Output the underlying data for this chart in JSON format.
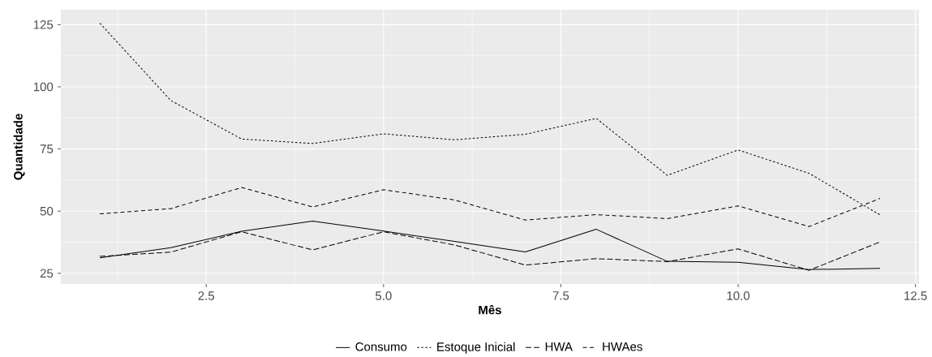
{
  "chart_data": {
    "type": "line",
    "xlabel": "Mês",
    "ylabel": "Quantidade",
    "x": [
      1,
      2,
      3,
      4,
      5,
      6,
      7,
      8,
      9,
      10,
      11,
      12
    ],
    "series": [
      {
        "name": "Consumo",
        "color": "#000000",
        "line_style": "solid",
        "values": [
          31.2,
          35.3,
          41.9,
          46.0,
          42.0,
          37.8,
          33.6,
          42.7,
          29.8,
          29.4,
          26.5,
          27.0
        ]
      },
      {
        "name": "Estoque Inicial",
        "color": "#000000",
        "line_style": "dotted",
        "values": [
          125.6,
          94.5,
          79.0,
          77.2,
          81.1,
          78.7,
          80.9,
          87.3,
          64.4,
          74.6,
          65.2,
          48.5
        ]
      },
      {
        "name": "HWA",
        "color": "#000000",
        "line_style": "dashed",
        "values": [
          31.8,
          33.5,
          41.7,
          34.4,
          41.7,
          36.4,
          28.3,
          30.9,
          29.7,
          34.8,
          26.2,
          37.6
        ]
      },
      {
        "name": "HWAes",
        "color": "#000000",
        "line_style": "dashed",
        "values": [
          48.9,
          51.0,
          59.5,
          51.7,
          58.6,
          54.5,
          46.4,
          48.6,
          47.0,
          52.1,
          43.8,
          55.1
        ]
      }
    ],
    "xlim": [
      0.45,
      12.55
    ],
    "ylim": [
      20.7,
      131.0
    ],
    "xticks": [
      2.5,
      {
        "value": 5,
        "label": "5.0"
      },
      7.5,
      {
        "value": 10,
        "label": "10.0"
      },
      12.5
    ],
    "yticks": [
      25,
      50,
      75,
      100,
      125
    ],
    "grid": true,
    "legend": "bottom",
    "marker": "none"
  }
}
